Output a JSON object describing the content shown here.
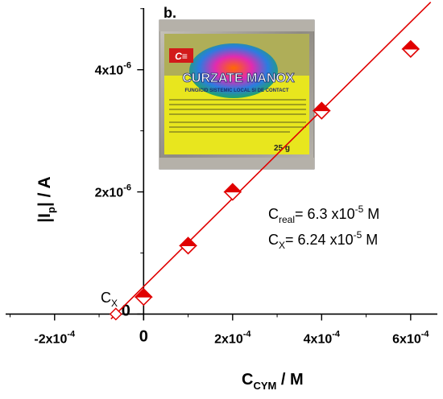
{
  "panel_label": "b.",
  "product": {
    "name": "CURZATE MANOX",
    "subtitle": "FUNGICID SISTEMIC LOCAL SI DE CONTACT",
    "weight": "25 g",
    "colors": {
      "foil": "#a8a49c",
      "label": "#e8e61e",
      "brand": "#d21a1a"
    }
  },
  "annotations": {
    "c_real": {
      "main": "C",
      "sub": "real",
      "value": "= 6.3 x10",
      "exp": "-5",
      "unit": " M"
    },
    "c_x": {
      "main": "C",
      "sub": "X",
      "value": "= 6.24 x10",
      "exp": "-5",
      "unit": " M"
    },
    "cx_marker": {
      "main": "C",
      "sub": "X"
    }
  },
  "axes": {
    "x_title": {
      "main": "C",
      "sub": "CYM",
      "rest": " / M"
    },
    "y_title": {
      "main": "|I",
      "sub": "p",
      "rest": "| / A"
    },
    "x_ticks": [
      {
        "value": -0.0002,
        "mant": "-2x10",
        "exp": "-4"
      },
      {
        "value": 0,
        "mant": "0",
        "exp": ""
      },
      {
        "value": 0.0002,
        "mant": "2x10",
        "exp": "-4"
      },
      {
        "value": 0.0004,
        "mant": "4x10",
        "exp": "-4"
      },
      {
        "value": 0.0006,
        "mant": "6x10",
        "exp": "-4"
      }
    ],
    "y_ticks": [
      {
        "value": 0,
        "mant": "0",
        "exp": ""
      },
      {
        "value": 2e-06,
        "mant": "2x10",
        "exp": "-6"
      },
      {
        "value": 4e-06,
        "mant": "4x10",
        "exp": "-6"
      }
    ]
  },
  "chart_data": {
    "type": "scatter",
    "xlim": [
      -0.00031,
      0.00066
    ],
    "ylim": [
      -1e-07,
      5.01e-06
    ],
    "series": [
      {
        "marker": "half-filled diamond",
        "color": "#e00000",
        "x": [
          0,
          0.0001,
          0.0002,
          0.0004,
          0.0006
        ],
        "y": [
          2.8e-07,
          1.12e-06,
          2e-06,
          3.33e-06,
          4.34e-06
        ]
      }
    ],
    "fit_line": {
      "color": "#e00000",
      "slope": 0.00722,
      "intercept": 4.5e-07,
      "x_range": [
        -6.24e-05,
        0.000645
      ]
    },
    "x_intercept": -6.24e-05
  }
}
